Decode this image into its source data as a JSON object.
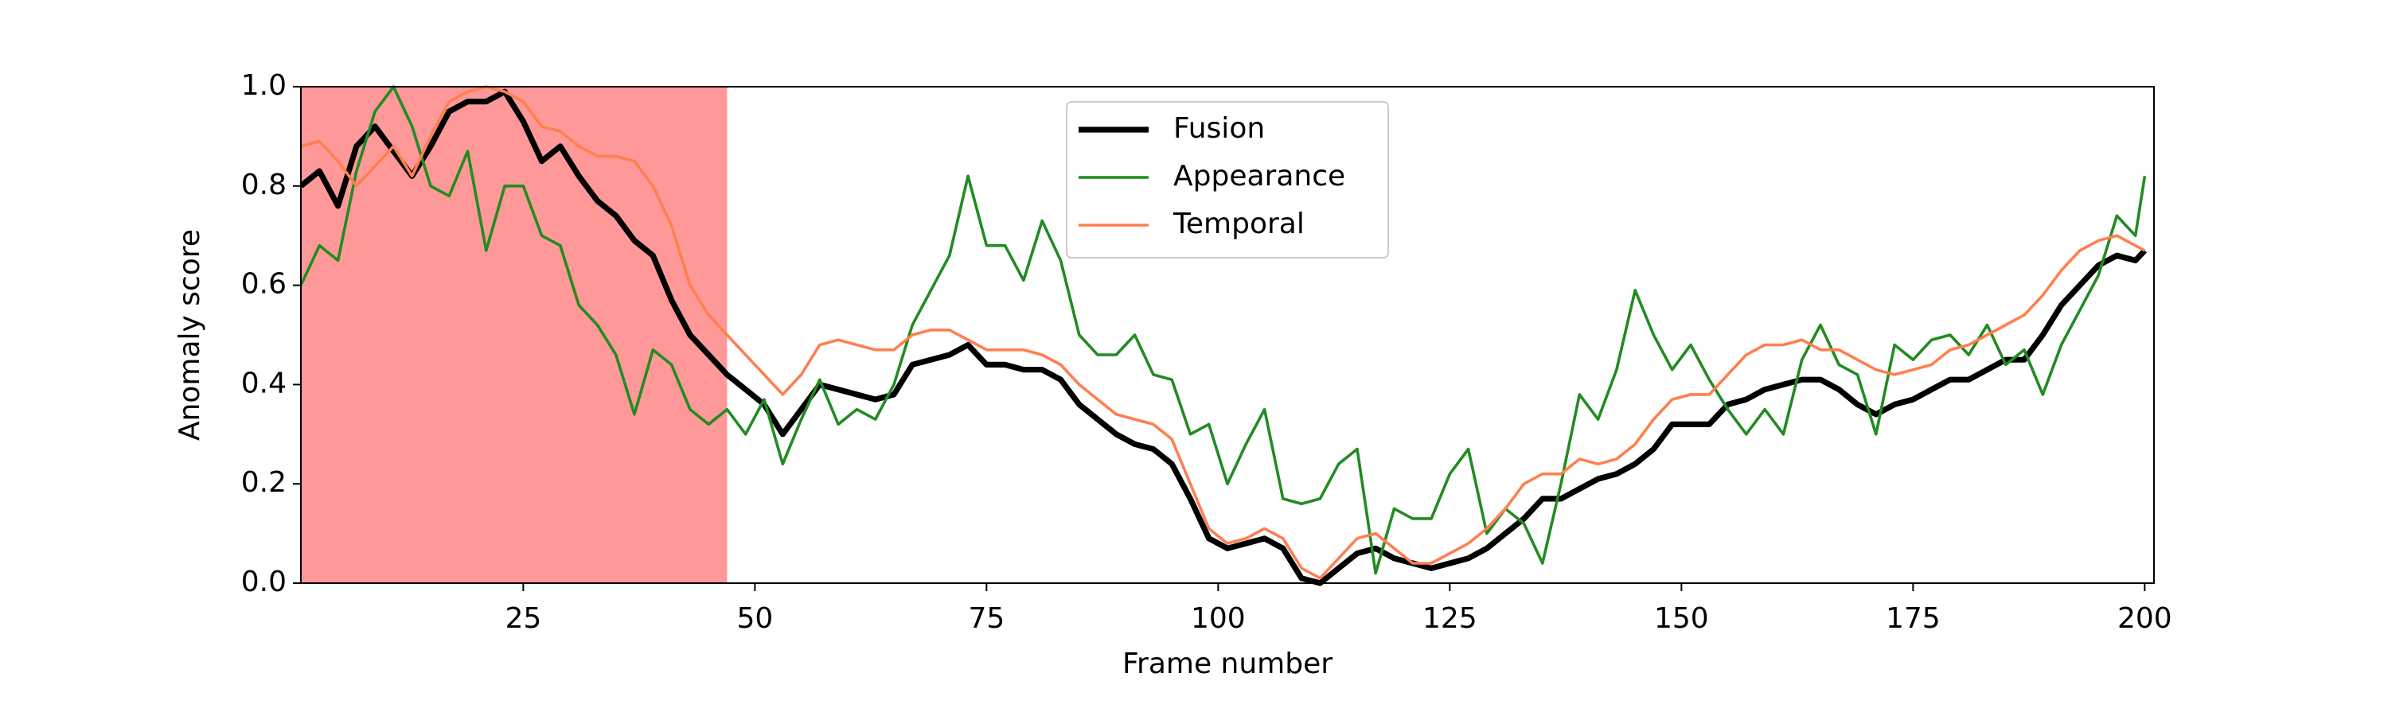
{
  "chart_data": {
    "type": "line",
    "x_label": "Frame number",
    "y_label": "Anomaly score",
    "xlim": [
      1,
      201
    ],
    "ylim": [
      0,
      1
    ],
    "xticks": [
      25,
      50,
      75,
      100,
      125,
      150,
      175,
      200
    ],
    "yticks": [
      {
        "value": 0,
        "label": "0.0"
      },
      0.2,
      0.4,
      0.6,
      0.8,
      {
        "value": 1,
        "label": "1.0"
      }
    ],
    "shaded_x": [
      1,
      47
    ],
    "shaded_color": "#ff9999",
    "legend": "upper center",
    "x": [
      1,
      3,
      5,
      7,
      9,
      11,
      13,
      15,
      17,
      19,
      21,
      23,
      25,
      27,
      29,
      31,
      33,
      35,
      37,
      39,
      41,
      43,
      45,
      47,
      49,
      51,
      53,
      55,
      57,
      59,
      61,
      63,
      65,
      67,
      69,
      71,
      73,
      75,
      77,
      79,
      81,
      83,
      85,
      87,
      89,
      91,
      93,
      95,
      97,
      99,
      101,
      103,
      105,
      107,
      109,
      111,
      113,
      115,
      117,
      119,
      121,
      123,
      125,
      127,
      129,
      131,
      133,
      135,
      137,
      139,
      141,
      143,
      145,
      147,
      149,
      151,
      153,
      155,
      157,
      159,
      161,
      163,
      165,
      167,
      169,
      171,
      173,
      175,
      177,
      179,
      181,
      183,
      185,
      187,
      189,
      191,
      193,
      195,
      197,
      199,
      200
    ],
    "series": [
      {
        "name": "Fusion",
        "color": "#000000",
        "line_width": 3,
        "values": [
          0.8,
          0.83,
          0.76,
          0.88,
          0.92,
          0.87,
          0.82,
          0.88,
          0.95,
          0.97,
          0.97,
          0.99,
          0.93,
          0.85,
          0.88,
          0.82,
          0.77,
          0.74,
          0.69,
          0.66,
          0.57,
          0.5,
          0.46,
          0.42,
          0.39,
          0.36,
          0.3,
          0.35,
          0.4,
          0.39,
          0.38,
          0.37,
          0.38,
          0.44,
          0.45,
          0.46,
          0.48,
          0.44,
          0.44,
          0.43,
          0.43,
          0.41,
          0.36,
          0.33,
          0.3,
          0.28,
          0.27,
          0.24,
          0.17,
          0.09,
          0.07,
          0.08,
          0.09,
          0.07,
          0.01,
          0.0,
          0.03,
          0.06,
          0.07,
          0.05,
          0.04,
          0.03,
          0.04,
          0.05,
          0.07,
          0.1,
          0.13,
          0.17,
          0.17,
          0.19,
          0.21,
          0.22,
          0.24,
          0.27,
          0.32,
          0.32,
          0.32,
          0.36,
          0.37,
          0.39,
          0.4,
          0.41,
          0.41,
          0.39,
          0.36,
          0.34,
          0.36,
          0.37,
          0.39,
          0.41,
          0.41,
          0.43,
          0.45,
          0.45,
          0.5,
          0.56,
          0.6,
          0.64,
          0.66,
          0.65,
          0.67
        ]
      },
      {
        "name": "Appearance",
        "color": "#228b22",
        "line_width": 1.5,
        "values": [
          0.6,
          0.68,
          0.65,
          0.83,
          0.95,
          1.0,
          0.92,
          0.8,
          0.78,
          0.87,
          0.67,
          0.8,
          0.8,
          0.7,
          0.68,
          0.56,
          0.52,
          0.46,
          0.34,
          0.47,
          0.44,
          0.35,
          0.32,
          0.35,
          0.3,
          0.37,
          0.24,
          0.33,
          0.41,
          0.32,
          0.35,
          0.33,
          0.4,
          0.52,
          0.59,
          0.66,
          0.82,
          0.68,
          0.68,
          0.61,
          0.73,
          0.65,
          0.5,
          0.46,
          0.46,
          0.5,
          0.42,
          0.41,
          0.3,
          0.32,
          0.2,
          0.28,
          0.35,
          0.17,
          0.16,
          0.17,
          0.24,
          0.27,
          0.02,
          0.15,
          0.13,
          0.13,
          0.22,
          0.27,
          0.1,
          0.15,
          0.12,
          0.04,
          0.2,
          0.38,
          0.33,
          0.43,
          0.59,
          0.5,
          0.43,
          0.48,
          0.41,
          0.35,
          0.3,
          0.35,
          0.3,
          0.45,
          0.52,
          0.44,
          0.42,
          0.3,
          0.48,
          0.45,
          0.49,
          0.5,
          0.46,
          0.52,
          0.44,
          0.47,
          0.38,
          0.48,
          0.55,
          0.62,
          0.74,
          0.7,
          0.82
        ]
      },
      {
        "name": "Temporal",
        "color": "#ff7f50",
        "line_width": 1.5,
        "values": [
          0.88,
          0.89,
          0.85,
          0.8,
          0.84,
          0.88,
          0.82,
          0.9,
          0.97,
          0.99,
          1.0,
          0.99,
          0.97,
          0.92,
          0.91,
          0.88,
          0.86,
          0.86,
          0.85,
          0.8,
          0.72,
          0.6,
          0.54,
          0.5,
          0.46,
          0.42,
          0.38,
          0.42,
          0.48,
          0.49,
          0.48,
          0.47,
          0.47,
          0.5,
          0.51,
          0.51,
          0.49,
          0.47,
          0.47,
          0.47,
          0.46,
          0.44,
          0.4,
          0.37,
          0.34,
          0.33,
          0.32,
          0.29,
          0.2,
          0.11,
          0.08,
          0.09,
          0.11,
          0.09,
          0.03,
          0.01,
          0.05,
          0.09,
          0.1,
          0.07,
          0.04,
          0.04,
          0.06,
          0.08,
          0.11,
          0.15,
          0.2,
          0.22,
          0.22,
          0.25,
          0.24,
          0.25,
          0.28,
          0.33,
          0.37,
          0.38,
          0.38,
          0.42,
          0.46,
          0.48,
          0.48,
          0.49,
          0.47,
          0.47,
          0.45,
          0.43,
          0.42,
          0.43,
          0.44,
          0.47,
          0.48,
          0.5,
          0.52,
          0.54,
          0.58,
          0.63,
          0.67,
          0.69,
          0.7,
          0.68,
          0.67
        ]
      }
    ]
  }
}
